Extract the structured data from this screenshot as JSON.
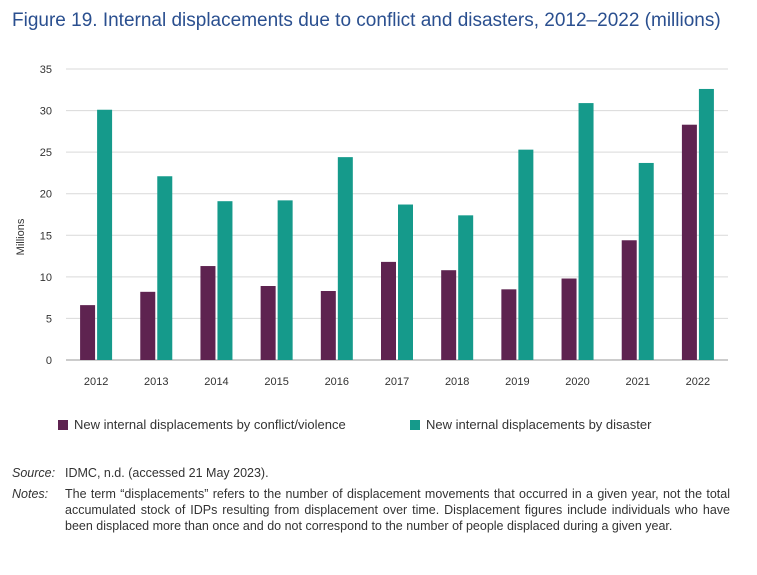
{
  "figure": {
    "title": "Figure 19. Internal displacements due to conflict and disasters, 2012–2022 (millions)",
    "source_label": "Source:",
    "source_text": "IDMC, n.d. (accessed 21 May 2023).",
    "notes_label": "Notes:",
    "notes_text": "The term “displacements” refers to the number of displacement movements that occurred in a given year, not the total accumulated stock of IDPs resulting from displacement over time. Displacement figures include individuals who have been displaced more than once and do not correspond to the number of people displaced during a given year."
  },
  "chart_data": {
    "type": "bar",
    "title": "Figure 19. Internal displacements due to conflict and disasters, 2012–2022 (millions)",
    "xlabel": "",
    "ylabel": "Millions",
    "ylim": [
      0,
      35
    ],
    "yticks": [
      0,
      5,
      10,
      15,
      20,
      25,
      30,
      35
    ],
    "grid": true,
    "legend_position": "bottom",
    "categories": [
      "2012",
      "2013",
      "2014",
      "2015",
      "2016",
      "2017",
      "2018",
      "2019",
      "2020",
      "2021",
      "2022"
    ],
    "series": [
      {
        "name": "New internal displacements by conflict/violence",
        "color": "#5e2350",
        "values": [
          6.6,
          8.2,
          11.3,
          8.9,
          8.3,
          11.8,
          10.8,
          8.5,
          9.8,
          14.4,
          28.3
        ]
      },
      {
        "name": "New internal displacements by disaster",
        "color": "#159a8b",
        "values": [
          30.1,
          22.1,
          19.1,
          19.2,
          24.4,
          18.7,
          17.4,
          25.3,
          30.9,
          23.7,
          32.6
        ]
      }
    ]
  }
}
